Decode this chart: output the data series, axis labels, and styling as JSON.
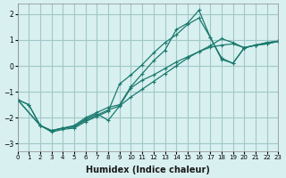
{
  "title": "",
  "xlabel": "Humidex (Indice chaleur)",
  "ylabel": "",
  "bg_color": "#d9f0f0",
  "line_color": "#1a7a6e",
  "grid_color": "#a0c8c8",
  "xlim": [
    0,
    23
  ],
  "ylim": [
    -3.3,
    2.4
  ],
  "xticks": [
    0,
    1,
    2,
    3,
    4,
    5,
    6,
    7,
    8,
    9,
    10,
    11,
    12,
    13,
    14,
    15,
    16,
    17,
    18,
    19,
    20,
    21,
    22,
    23
  ],
  "yticks": [
    -3,
    -2,
    -1,
    0,
    1,
    2
  ],
  "series": [
    {
      "x": [
        0,
        1,
        2,
        3,
        4,
        5,
        6,
        7,
        8,
        9,
        10,
        11,
        12,
        13,
        14,
        15,
        16,
        17,
        18,
        19,
        20,
        21,
        22,
        23
      ],
      "y": [
        -1.3,
        -1.5,
        -2.3,
        -2.5,
        -2.4,
        -2.3,
        -2.0,
        -1.8,
        -1.6,
        -1.5,
        -0.8,
        -0.3,
        0.2,
        0.6,
        1.4,
        1.65,
        2.15,
        1.1,
        0.3,
        0.1,
        0.7,
        0.8,
        0.9,
        0.95
      ]
    },
    {
      "x": [
        0,
        1,
        2,
        3,
        4,
        5,
        6,
        7,
        8,
        9,
        10,
        11,
        12,
        13,
        14,
        15,
        16,
        17,
        18,
        19,
        20,
        21,
        22,
        23
      ],
      "y": [
        -1.3,
        -1.5,
        -2.3,
        -2.5,
        -2.4,
        -2.35,
        -2.1,
        -1.9,
        -1.7,
        -1.55,
        -0.85,
        -0.55,
        -0.35,
        -0.1,
        0.15,
        0.35,
        0.55,
        0.72,
        0.8,
        0.85,
        0.7,
        0.8,
        0.85,
        0.95
      ]
    },
    {
      "x": [
        0,
        2,
        3,
        4,
        5,
        6,
        7,
        8,
        9,
        10,
        11,
        12,
        13,
        14,
        15,
        16,
        17,
        18,
        19,
        20,
        21,
        22,
        23
      ],
      "y": [
        -1.3,
        -2.3,
        -2.5,
        -2.4,
        -2.35,
        -2.05,
        -1.85,
        -2.1,
        -1.55,
        -1.2,
        -0.9,
        -0.6,
        -0.3,
        0.0,
        0.3,
        0.55,
        0.78,
        1.05,
        0.9,
        0.7,
        0.8,
        0.85,
        0.95
      ]
    },
    {
      "x": [
        0,
        2,
        3,
        4,
        5,
        6,
        7,
        8,
        9,
        10,
        11,
        12,
        13,
        14,
        15,
        16,
        17,
        18,
        19,
        20,
        21,
        22,
        23
      ],
      "y": [
        -1.3,
        -2.3,
        -2.55,
        -2.45,
        -2.4,
        -2.15,
        -1.95,
        -1.75,
        -0.7,
        -0.35,
        0.05,
        0.5,
        0.9,
        1.2,
        1.6,
        1.85,
        1.1,
        0.25,
        0.1,
        0.7,
        0.8,
        0.9,
        0.95
      ]
    }
  ]
}
